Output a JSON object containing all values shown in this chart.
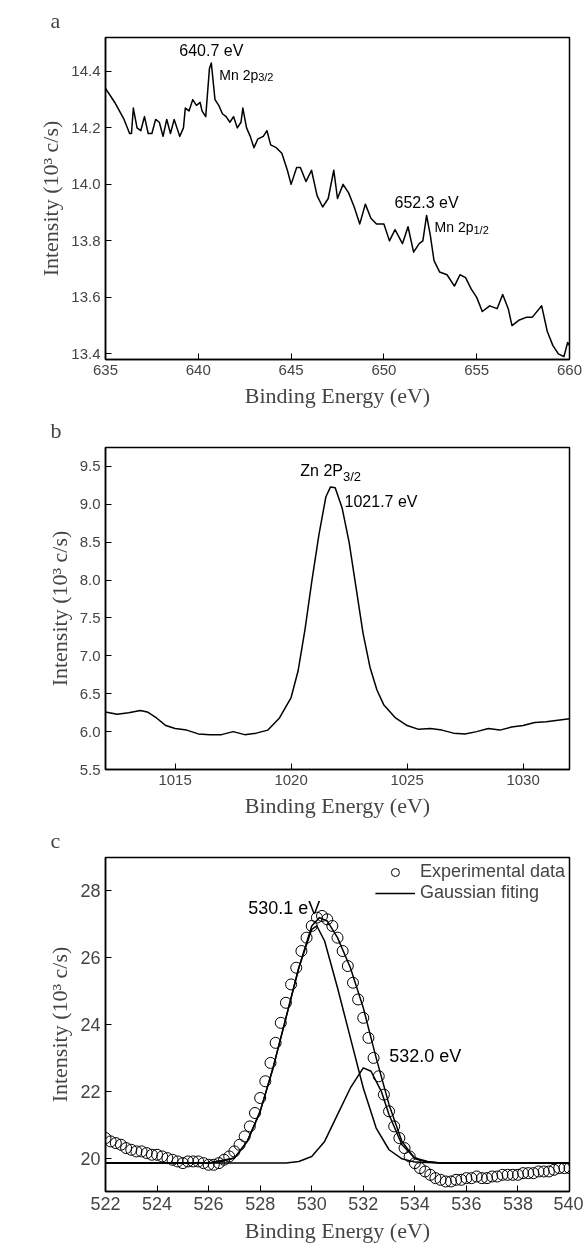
{
  "chart_data": [
    {
      "type": "line",
      "title": "a",
      "xlabel": "Binding Energy (eV)",
      "ylabel": "Intensity (10³ c/s)",
      "xlim": [
        635,
        660
      ],
      "xticks": [
        635,
        640,
        645,
        650,
        655,
        660
      ],
      "ylim": [
        13.38,
        14.52
      ],
      "yticks": [
        13.4,
        13.6,
        13.8,
        {
          "value": 14.0,
          "label": "14.0"
        },
        14.2,
        14.4
      ],
      "grid": false,
      "legend": false,
      "annotations": [
        {
          "text": "640.7 eV",
          "x": 640.7,
          "y": 14.43
        },
        {
          "text": "Mn 2p$_{3/2}$",
          "x": 640.7,
          "y": 14.43
        },
        {
          "text": "652.3 eV",
          "x": 652.3,
          "y": 13.89
        },
        {
          "text": "Mn 2p$_{1/2}$",
          "x": 652.3,
          "y": 13.89
        }
      ],
      "series": [
        {
          "color": "#000000",
          "x": [
            635,
            635.5,
            636,
            636.3,
            636.4,
            636.5,
            636.7,
            636.9,
            637.1,
            637.3,
            637.5,
            637.7,
            637.9,
            638.1,
            638.3,
            638.5,
            638.7,
            639,
            639.2,
            639.3,
            639.5,
            639.7,
            639.9,
            640.1,
            640.2,
            640.4,
            640.6,
            640.7,
            640.9,
            641.1,
            641.3,
            641.5,
            641.7,
            641.9,
            642.1,
            642.3,
            642.4,
            642.6,
            642.8,
            643,
            643.2,
            643.5,
            643.7,
            643.9,
            644.2,
            644.5,
            644.8,
            645,
            645.3,
            645.5,
            645.8,
            646.1,
            646.4,
            646.7,
            647,
            647.3,
            647.5,
            647.8,
            648.1,
            648.4,
            648.7,
            649,
            649.3,
            649.6,
            650,
            650.3,
            650.6,
            651,
            651.3,
            651.6,
            651.9,
            652.1,
            652.3,
            652.5,
            652.7,
            653,
            653.4,
            653.8,
            654.1,
            654.4,
            654.7,
            655,
            655.3,
            655.7,
            656.1,
            656.4,
            656.7,
            656.9,
            657.3,
            657.7,
            658,
            658.5,
            658.8,
            659.1,
            659.4,
            659.7,
            659.9,
            660
          ],
          "values": [
            14.34,
            14.29,
            14.23,
            14.18,
            14.18,
            14.27,
            14.2,
            14.19,
            14.24,
            14.18,
            14.18,
            14.23,
            14.22,
            14.17,
            14.23,
            14.18,
            14.23,
            14.17,
            14.2,
            14.27,
            14.26,
            14.3,
            14.28,
            14.29,
            14.26,
            14.24,
            14.41,
            14.43,
            14.3,
            14.28,
            14.25,
            14.24,
            14.22,
            14.24,
            14.2,
            14.22,
            14.27,
            14.2,
            14.17,
            14.13,
            14.16,
            14.17,
            14.19,
            14.14,
            14.13,
            14.11,
            14.05,
            14.0,
            14.06,
            14.06,
            14.01,
            14.05,
            13.96,
            13.92,
            13.95,
            14.05,
            13.95,
            14.0,
            13.97,
            13.92,
            13.86,
            13.93,
            13.88,
            13.86,
            13.86,
            13.8,
            13.84,
            13.79,
            13.85,
            13.76,
            13.79,
            13.8,
            13.89,
            13.82,
            13.73,
            13.69,
            13.68,
            13.64,
            13.68,
            13.67,
            13.63,
            13.6,
            13.55,
            13.57,
            13.56,
            13.61,
            13.56,
            13.5,
            13.52,
            13.53,
            13.53,
            13.57,
            13.48,
            13.43,
            13.4,
            13.39,
            13.44,
            13.43
          ]
        }
      ]
    },
    {
      "type": "line",
      "title": "b",
      "xlabel": "Binding Energy (eV)",
      "ylabel": "Intensity (10³ c/s)",
      "xlim": [
        1012,
        1032
      ],
      "xticks": [
        1015,
        1020,
        1025,
        1030
      ],
      "ylim": [
        5.5,
        9.75
      ],
      "yticks": [
        5.5,
        {
          "value": 6.0,
          "label": "6.0"
        },
        6.5,
        {
          "value": 7.0,
          "label": "7.0"
        },
        7.5,
        {
          "value": 8.0,
          "label": "8.0"
        },
        8.5,
        {
          "value": 9.0,
          "label": "9.0"
        },
        9.5
      ],
      "grid": false,
      "legend": false,
      "annotations": [
        {
          "text": "Zn 2P$_{3/2}$",
          "x": 1021.7,
          "y": 9.23
        },
        {
          "text": "1021.7 eV",
          "x": 1021.7,
          "y": 9.23
        }
      ],
      "series": [
        {
          "color": "#000000",
          "x": [
            1012,
            1012.5,
            1013,
            1013.5,
            1013.8,
            1014.2,
            1014.6,
            1015,
            1015.5,
            1016,
            1016.5,
            1017,
            1017.5,
            1018,
            1018.5,
            1019,
            1019.5,
            1020,
            1020.3,
            1020.6,
            1020.9,
            1021.2,
            1021.5,
            1021.7,
            1021.9,
            1022.2,
            1022.5,
            1022.8,
            1023.1,
            1023.4,
            1023.7,
            1024,
            1024.5,
            1025,
            1025.5,
            1026,
            1026.5,
            1027,
            1027.5,
            1028,
            1028.5,
            1029,
            1029.5,
            1030,
            1030.5,
            1031,
            1031.5,
            1032
          ],
          "values": [
            6.26,
            6.23,
            6.25,
            6.28,
            6.26,
            6.18,
            6.08,
            6.04,
            6.02,
            5.97,
            5.96,
            5.96,
            6.0,
            5.96,
            5.98,
            6.02,
            6.18,
            6.45,
            6.8,
            7.35,
            8.0,
            8.6,
            9.1,
            9.23,
            9.22,
            8.95,
            8.5,
            7.9,
            7.3,
            6.85,
            6.55,
            6.35,
            6.18,
            6.08,
            6.03,
            6.04,
            6.02,
            5.98,
            5.97,
            6.0,
            6.04,
            6.02,
            6.06,
            6.08,
            6.12,
            6.13,
            6.15,
            6.17
          ]
        }
      ]
    },
    {
      "type": "line",
      "title": "c",
      "xlabel": "Binding Energy (eV)",
      "ylabel": "Intensity (10³ c/s)",
      "xlim": [
        522,
        540
      ],
      "xticks": [
        522,
        524,
        526,
        528,
        530,
        532,
        534,
        536,
        538,
        540
      ],
      "ylim": [
        19,
        29
      ],
      "yticks": [
        20,
        22,
        24,
        26,
        28
      ],
      "grid": false,
      "legend": "top right",
      "annotations": [
        {
          "text": "530.1 eV",
          "x": 530.1,
          "y": 26.95
        },
        {
          "text": "532.0 eV",
          "x": 532.0,
          "y": 22.7
        }
      ],
      "series": [
        {
          "name": "Experimental data",
          "type": "scatter",
          "marker": "circle",
          "color": "#000000",
          "x": [
            522.0,
            522.2,
            522.4,
            522.6,
            522.8,
            523.0,
            523.2,
            523.4,
            523.6,
            523.8,
            524.0,
            524.2,
            524.4,
            524.6,
            524.8,
            525.0,
            525.2,
            525.4,
            525.6,
            525.8,
            526.0,
            526.2,
            526.4,
            526.6,
            526.8,
            527.0,
            527.2,
            527.4,
            527.6,
            527.8,
            528.0,
            528.2,
            528.4,
            528.6,
            528.8,
            529.0,
            529.2,
            529.4,
            529.6,
            529.8,
            530.0,
            530.2,
            530.4,
            530.6,
            530.8,
            531.0,
            531.2,
            531.4,
            531.6,
            531.8,
            532.0,
            532.2,
            532.4,
            532.6,
            532.8,
            533.0,
            533.2,
            533.4,
            533.6,
            533.8,
            534.0,
            534.2,
            534.4,
            534.6,
            534.8,
            535.0,
            535.2,
            535.4,
            535.6,
            535.8,
            536.0,
            536.2,
            536.4,
            536.6,
            536.8,
            537.0,
            537.2,
            537.4,
            537.6,
            537.8,
            538.0,
            538.2,
            538.4,
            538.6,
            538.8,
            539.0,
            539.2,
            539.4,
            539.6,
            539.8,
            540.0
          ],
          "values": [
            20.6,
            20.5,
            20.45,
            20.4,
            20.3,
            20.25,
            20.2,
            20.2,
            20.15,
            20.1,
            20.1,
            20.05,
            20.0,
            19.95,
            19.9,
            19.85,
            19.9,
            19.9,
            19.9,
            19.85,
            19.8,
            19.8,
            19.85,
            19.95,
            20.05,
            20.2,
            20.4,
            20.65,
            20.95,
            21.35,
            21.8,
            22.3,
            22.85,
            23.45,
            24.05,
            24.65,
            25.2,
            25.7,
            26.2,
            26.6,
            26.95,
            27.2,
            27.25,
            27.15,
            26.95,
            26.6,
            26.2,
            25.75,
            25.25,
            24.75,
            24.2,
            23.6,
            23.0,
            22.45,
            21.9,
            21.4,
            20.95,
            20.6,
            20.3,
            20.05,
            19.85,
            19.7,
            19.6,
            19.5,
            19.4,
            19.35,
            19.3,
            19.3,
            19.35,
            19.35,
            19.4,
            19.4,
            19.45,
            19.4,
            19.4,
            19.45,
            19.45,
            19.5,
            19.5,
            19.5,
            19.5,
            19.55,
            19.55,
            19.55,
            19.6,
            19.6,
            19.6,
            19.65,
            19.7,
            19.7,
            19.7
          ]
        },
        {
          "name": "Gaussian fiting",
          "type": "line",
          "color": "#000000",
          "x": [
            522,
            526,
            527,
            527.5,
            528,
            528.5,
            529,
            529.5,
            530,
            530.3,
            530.6,
            531,
            531.5,
            532,
            532.5,
            533,
            533.5,
            534,
            534.5,
            535,
            540
          ],
          "values": [
            19.85,
            19.85,
            20.0,
            20.5,
            21.4,
            22.7,
            24.2,
            25.7,
            26.95,
            27.2,
            27.1,
            26.6,
            25.7,
            24.5,
            23.0,
            21.6,
            20.5,
            19.98,
            19.88,
            19.85,
            19.85
          ]
        },
        {
          "type": "line",
          "color": "#000000",
          "x": [
            522,
            526,
            526.5,
            527,
            527.5,
            528,
            528.5,
            529,
            529.5,
            530,
            530.2,
            530.5,
            531,
            531.5,
            532,
            532.5,
            533,
            533.5,
            534,
            535,
            540
          ],
          "values": [
            19.85,
            19.85,
            19.9,
            20.0,
            20.5,
            21.4,
            22.7,
            24.2,
            25.7,
            26.85,
            26.95,
            26.5,
            25.1,
            23.6,
            22.1,
            20.9,
            20.25,
            19.98,
            19.88,
            19.85,
            19.85
          ]
        },
        {
          "type": "line",
          "color": "#000000",
          "x": [
            522,
            529,
            529.5,
            530,
            530.5,
            531,
            531.5,
            532,
            532.3,
            532.7,
            533,
            533.5,
            534,
            534.5,
            535,
            540
          ],
          "values": [
            19.85,
            19.85,
            19.9,
            20.05,
            20.5,
            21.3,
            22.1,
            22.7,
            22.6,
            22.0,
            21.3,
            20.4,
            20.0,
            19.9,
            19.85,
            19.85
          ]
        }
      ]
    }
  ]
}
